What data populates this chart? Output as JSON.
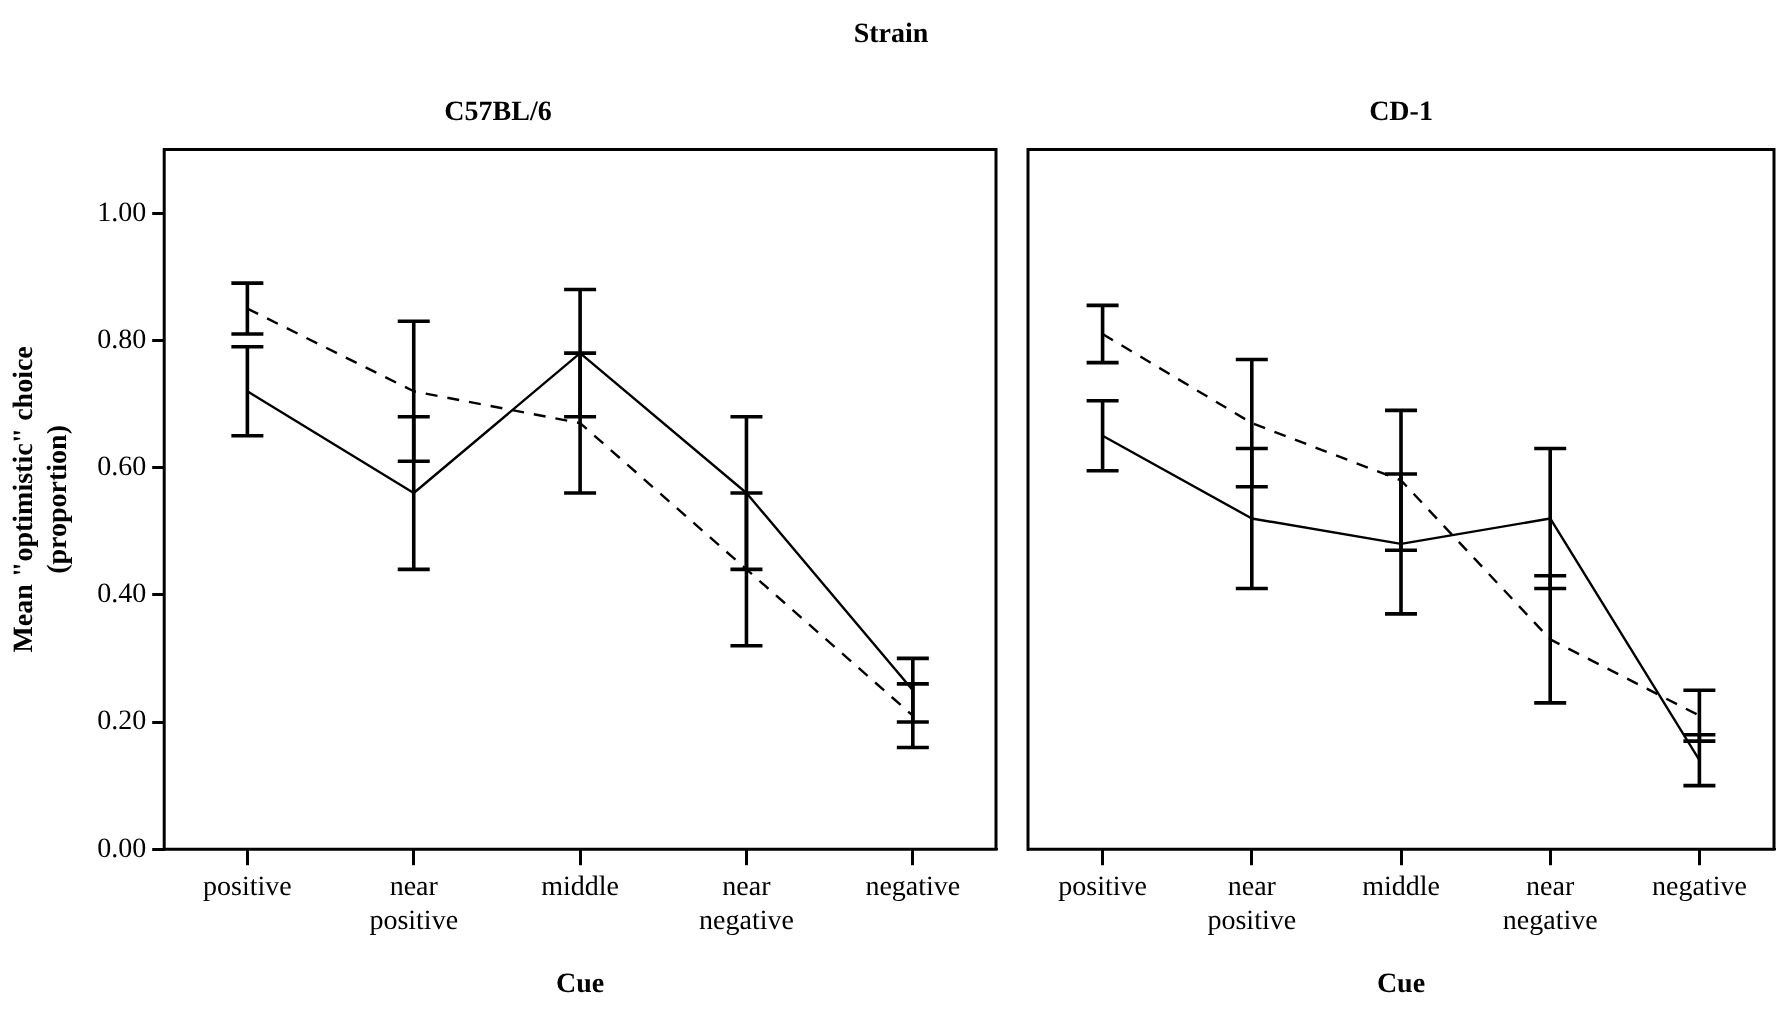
{
  "chart_data": [
    {
      "type": "line",
      "title": "C57BL/6",
      "xlabel": "Cue",
      "ylabel": "Mean \"optimistic\" choice (proportion)",
      "annotations": [
        "Strain"
      ],
      "categories": [
        "positive",
        "near positive",
        "middle",
        "near negative",
        "negative"
      ],
      "series": [
        {
          "color": "#000000",
          "line_style": "solid",
          "values": [
            0.72,
            0.56,
            0.78,
            0.56,
            0.25
          ],
          "errors": [
            0.07,
            0.12,
            0.1,
            0.12,
            0.05
          ]
        },
        {
          "color": "#000000",
          "line_style": "dashed",
          "values": [
            0.85,
            0.72,
            0.67,
            0.44,
            0.21
          ],
          "errors": [
            0.04,
            0.11,
            0.11,
            0.12,
            0.05
          ]
        }
      ],
      "ylim": [
        0,
        1.1
      ],
      "yticks": [
        {
          "value": 0,
          "label": "0.00"
        },
        {
          "value": 0.2,
          "label": "0.20"
        },
        {
          "value": 0.4,
          "label": "0.40"
        },
        {
          "value": 0.6,
          "label": "0.60"
        },
        {
          "value": 0.8,
          "label": "0.80"
        },
        {
          "value": 1,
          "label": "1.00"
        }
      ],
      "grid": false,
      "legend": false,
      "marker": "none"
    },
    {
      "type": "line",
      "title": "CD-1",
      "xlabel": "Cue",
      "categories": [
        "positive",
        "near positive",
        "middle",
        "near negative",
        "negative"
      ],
      "series": [
        {
          "color": "#000000",
          "line_style": "solid",
          "values": [
            0.65,
            0.52,
            0.48,
            0.52,
            0.14
          ],
          "errors": [
            0.055,
            0.11,
            0.11,
            0.11,
            0.04
          ]
        },
        {
          "color": "#000000",
          "line_style": "dashed",
          "values": [
            0.81,
            0.67,
            0.58,
            0.33,
            0.21
          ],
          "errors": [
            0.045,
            0.1,
            0.11,
            0.1,
            0.04
          ]
        }
      ],
      "ylim": [
        0,
        1.1
      ],
      "grid": false,
      "legend": false,
      "marker": "none",
      "tick_labels": "x"
    }
  ]
}
